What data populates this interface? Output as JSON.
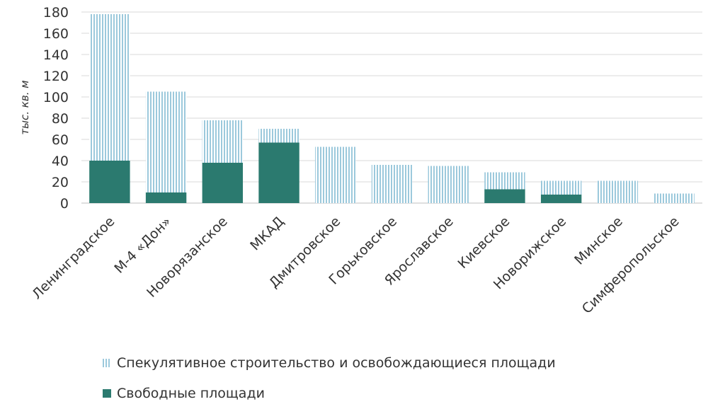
{
  "chart_data": {
    "type": "bar",
    "stacked": true,
    "categories": [
      "Ленинградское",
      "М-4 «Дон»",
      "Новорязанское",
      "МКАД",
      "Дмитровское",
      "Горьковское",
      "Ярославское",
      "Киевское",
      "Новорижское",
      "Минское",
      "Симферопольское"
    ],
    "series": [
      {
        "name": "Свободные площади",
        "color": "#2b7a6f",
        "pattern": "solid",
        "values": [
          40,
          10,
          38,
          57,
          0,
          0,
          0,
          13,
          8,
          0,
          0
        ]
      },
      {
        "name": "Спекулятивное строительство и освобождающиеся площади",
        "color": "#9cc9dc",
        "pattern": "vertical-stripes",
        "values": [
          138,
          95,
          40,
          13,
          53,
          36,
          35,
          16,
          13,
          21,
          9
        ]
      }
    ],
    "yticks": [
      "0",
      "20",
      "40",
      "60",
      "80",
      "100",
      "120",
      "140",
      "160",
      "180"
    ],
    "ylim": [
      0,
      180
    ],
    "ylabel": "тыс. кв. м",
    "xlabel": "",
    "grid": true,
    "legend_position": "bottom"
  }
}
